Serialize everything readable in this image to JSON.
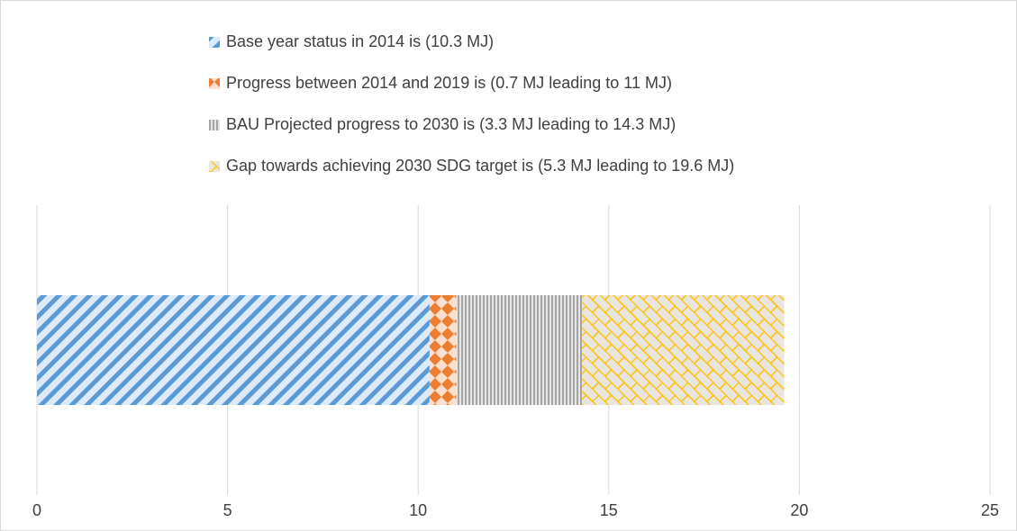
{
  "chart_data": {
    "type": "bar",
    "orientation": "horizontal",
    "stacked": true,
    "categories": [
      null
    ],
    "series": [
      {
        "name": "Base year status in 2014 is (10.3 MJ)",
        "color": "#5b9bd5",
        "values": [
          10.3
        ]
      },
      {
        "name": "Progress between 2014 and 2019 is (0.7 MJ leading to 11 MJ)",
        "color": "#ed7d31",
        "values": [
          0.7
        ]
      },
      {
        "name": "BAU Projected progress to 2030 is (3.3 MJ leading to 14.3 MJ)",
        "color": "#a5a5a5",
        "values": [
          3.3
        ]
      },
      {
        "name": "Gap towards achieving 2030 SDG target is (5.3 MJ leading to 19.6 MJ)",
        "color": "#ffc000",
        "values": [
          5.3
        ]
      }
    ],
    "xlim": [
      0,
      25
    ],
    "xticks": [
      0,
      5,
      10,
      15,
      20,
      25
    ],
    "grid": true,
    "legend": "top"
  }
}
